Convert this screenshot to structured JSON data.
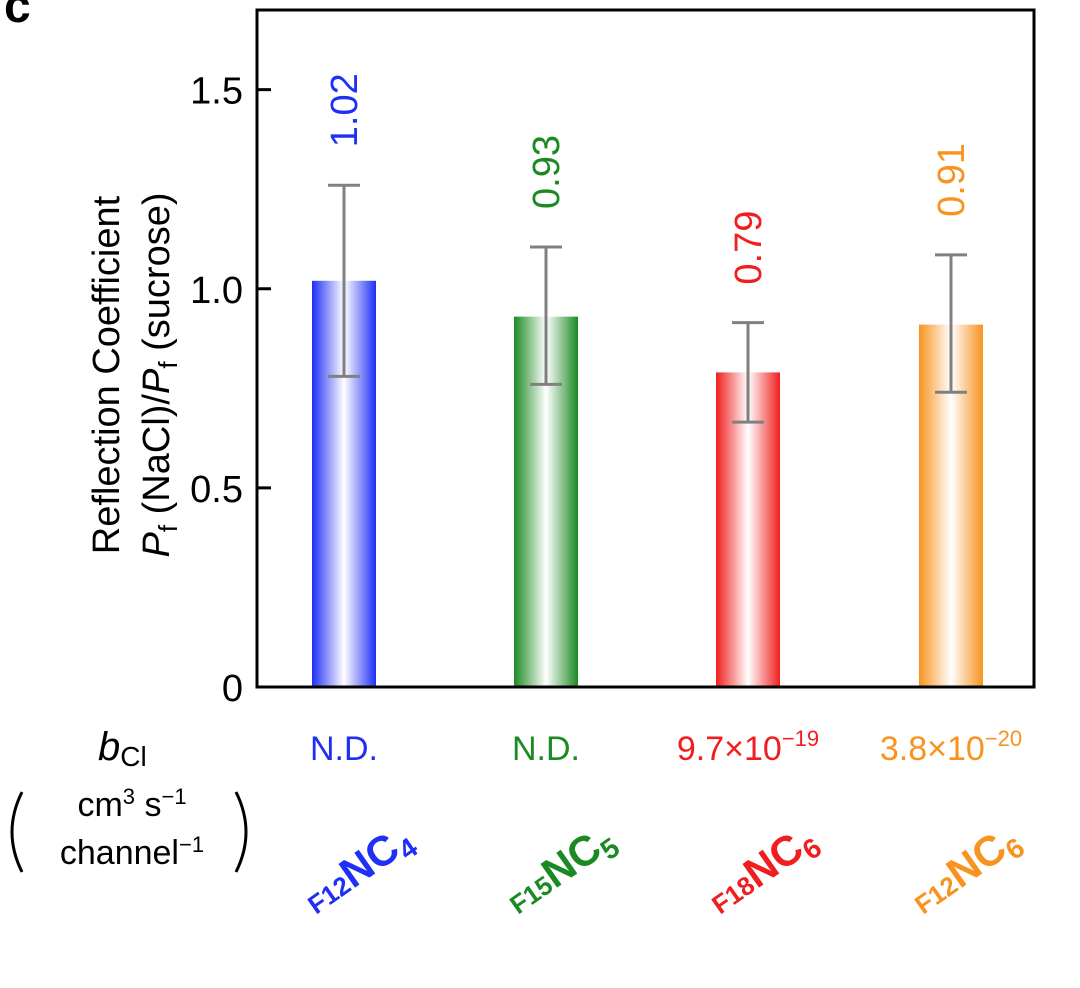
{
  "panel_label": "c",
  "colors": {
    "blue": "#1f2ff5",
    "green": "#1c8a23",
    "red": "#f01e1e",
    "orange": "#f7931e",
    "errorbar": "#808080",
    "axis": "#000000"
  },
  "chart_data": {
    "type": "bar",
    "title": "",
    "ylabel_line1": "Reflection Coefficient",
    "ylabel_line2": {
      "p1": "P",
      "sub1": "f",
      "mid": " (NaCl)/",
      "p2": "P",
      "sub2": "f",
      "end": " (sucrose)"
    },
    "ylim": [
      0,
      1.7
    ],
    "yticks": [
      0,
      0.5,
      1.0,
      1.5
    ],
    "ytick_labels": [
      "0",
      "0.5",
      "1.0",
      "1.5"
    ],
    "grid": false,
    "bars": [
      {
        "value": 1.02,
        "label": "1.02",
        "error_low": 0.78,
        "error_high": 1.26,
        "color": "#1f2ff5",
        "b_cl": {
          "mantissa": "N.D.",
          "exponent": ""
        },
        "name": {
          "prefix": "F12",
          "core": "NC",
          "sub": "4"
        }
      },
      {
        "value": 0.93,
        "label": "0.93",
        "error_low": 0.76,
        "error_high": 1.105,
        "color": "#1c8a23",
        "b_cl": {
          "mantissa": "N.D.",
          "exponent": ""
        },
        "name": {
          "prefix": "F15",
          "core": "NC",
          "sub": "5"
        }
      },
      {
        "value": 0.79,
        "label": "0.79",
        "error_low": 0.665,
        "error_high": 0.915,
        "color": "#f01e1e",
        "b_cl": {
          "mantissa": "9.7×10",
          "exponent": "−19"
        },
        "name": {
          "prefix": "F18",
          "core": "NC",
          "sub": "6"
        }
      },
      {
        "value": 0.91,
        "label": "0.91",
        "error_low": 0.74,
        "error_high": 1.085,
        "color": "#f7931e",
        "b_cl": {
          "mantissa": "3.8×10",
          "exponent": "−20"
        },
        "name": {
          "prefix": "F12",
          "core": "NC",
          "sub": "6"
        }
      }
    ],
    "row_label_bcl": {
      "b": "b",
      "sub": "Cl"
    },
    "units_label": {
      "line1_base": "cm",
      "line1_sup": "3",
      "line1_rest": " s",
      "line1_sup2": "−1",
      "line2_base": "channel",
      "line2_sup": "−1"
    }
  }
}
